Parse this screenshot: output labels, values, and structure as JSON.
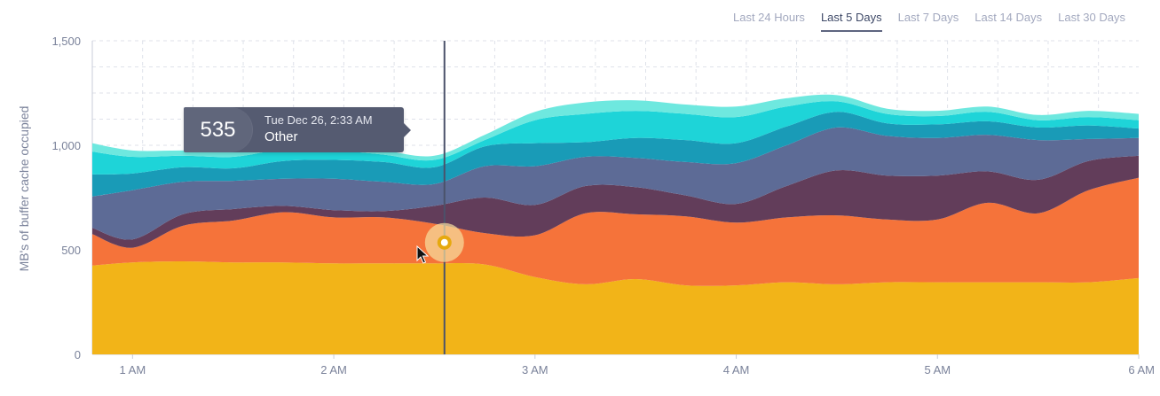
{
  "range_tabs": [
    {
      "label": "Last 24 Hours",
      "active": false
    },
    {
      "label": "Last 5 Days",
      "active": true
    },
    {
      "label": "Last 7 Days",
      "active": false
    },
    {
      "label": "Last 14 Days",
      "active": false
    },
    {
      "label": "Last 30 Days",
      "active": false
    }
  ],
  "tooltip": {
    "value": "535",
    "date": "Tue Dec 26, 2:33 AM",
    "series": "Other"
  },
  "chart_data": {
    "type": "area",
    "stacked": true,
    "ylabel": "MB's of buffer cache occupied",
    "ylim": [
      0,
      1500
    ],
    "yticks": [
      0,
      500,
      1000,
      1500
    ],
    "ytick_labels": [
      "0",
      "500",
      "1,000",
      "1,500"
    ],
    "xlim": [
      "0:48",
      "6:00"
    ],
    "xticks": [
      "1:00",
      "2:00",
      "3:00",
      "4:00",
      "5:00",
      "6:00"
    ],
    "xtick_labels": [
      "1 AM",
      "2 AM",
      "3 AM",
      "4 AM",
      "5 AM",
      "6 AM"
    ],
    "grid": true,
    "cursor_time": "2:33",
    "x": [
      "0:48",
      "1:00",
      "1:15",
      "1:30",
      "1:45",
      "2:00",
      "2:15",
      "2:30",
      "2:45",
      "3:00",
      "3:15",
      "3:30",
      "3:45",
      "4:00",
      "4:15",
      "4:30",
      "4:45",
      "5:00",
      "5:15",
      "5:30",
      "5:45",
      "6:00"
    ],
    "series": [
      {
        "color": "#f2b418",
        "values": [
          425,
          440,
          445,
          440,
          440,
          435,
          435,
          435,
          430,
          370,
          335,
          360,
          330,
          330,
          345,
          335,
          345,
          345,
          345,
          345,
          345,
          365
        ]
      },
      {
        "color": "#f5733a",
        "values": [
          150,
          70,
          170,
          200,
          240,
          220,
          220,
          190,
          150,
          200,
          340,
          310,
          330,
          300,
          310,
          330,
          300,
          300,
          380,
          330,
          440,
          480
        ]
      },
      {
        "color": "#623d5a",
        "values": [
          30,
          40,
          55,
          55,
          30,
          35,
          30,
          85,
          170,
          145,
          130,
          130,
          100,
          90,
          150,
          215,
          210,
          210,
          150,
          160,
          140,
          105
        ]
      },
      {
        "color": "#5d6b96",
        "values": [
          150,
          235,
          155,
          135,
          130,
          150,
          140,
          105,
          150,
          185,
          140,
          140,
          160,
          195,
          195,
          205,
          190,
          180,
          175,
          190,
          105,
          85
        ]
      },
      {
        "color": "#199bb7",
        "values": [
          105,
          80,
          70,
          60,
          85,
          90,
          95,
          80,
          95,
          110,
          70,
          95,
          105,
          95,
          90,
          75,
          60,
          65,
          65,
          60,
          65,
          45
        ]
      },
      {
        "color": "#1ed4d8",
        "values": [
          110,
          80,
          55,
          55,
          55,
          45,
          35,
          35,
          30,
          110,
          135,
          130,
          125,
          125,
          95,
          50,
          45,
          40,
          45,
          35,
          40,
          40
        ]
      },
      {
        "color": "#6ee8df",
        "values": [
          40,
          30,
          25,
          25,
          25,
          25,
          20,
          20,
          25,
          40,
          55,
          50,
          45,
          50,
          40,
          30,
          25,
          25,
          25,
          25,
          30,
          30
        ]
      }
    ]
  }
}
